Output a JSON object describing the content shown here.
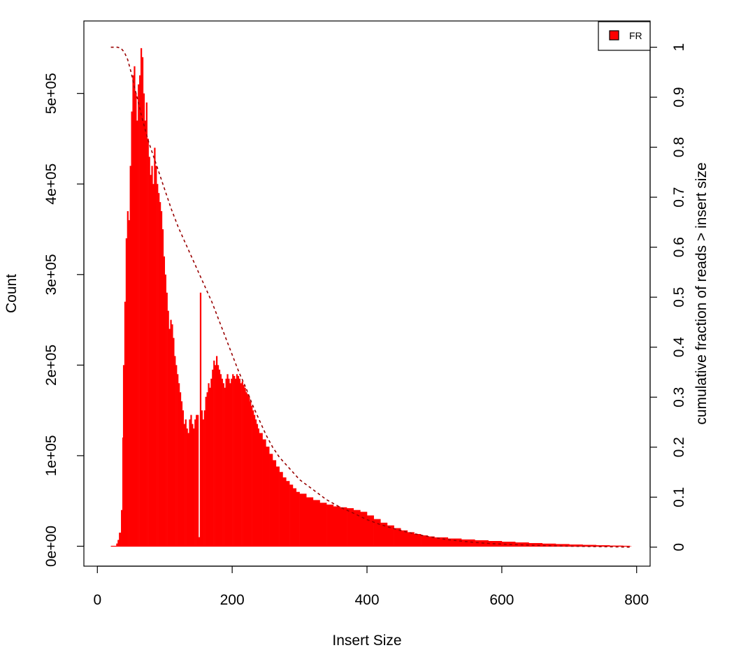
{
  "chart_data": {
    "type": "bar",
    "xlabel": "Insert Size",
    "ylabel": "Count",
    "ylabel_right": "cumulative fraction of reads > insert size",
    "xlim": [
      -20,
      820
    ],
    "ylim": [
      -22000,
      580000
    ],
    "ylim_right": [
      -0.038,
      1.0525
    ],
    "x_ticks": [
      {
        "value": 0,
        "label": "0"
      },
      {
        "value": 200,
        "label": "200"
      },
      {
        "value": 400,
        "label": "400"
      },
      {
        "value": 600,
        "label": "600"
      },
      {
        "value": 800,
        "label": "800"
      }
    ],
    "y_ticks": [
      {
        "value": 0,
        "label": "0e+00"
      },
      {
        "value": 100000,
        "label": "1e+05"
      },
      {
        "value": 200000,
        "label": "2e+05"
      },
      {
        "value": 300000,
        "label": "3e+05"
      },
      {
        "value": 400000,
        "label": "4e+05"
      },
      {
        "value": 500000,
        "label": "5e+05"
      }
    ],
    "y_right_ticks": [
      {
        "value": 0,
        "label": "0"
      },
      {
        "value": 0.1,
        "label": "0.1"
      },
      {
        "value": 0.2,
        "label": "0.2"
      },
      {
        "value": 0.3,
        "label": "0.3"
      },
      {
        "value": 0.4,
        "label": "0.4"
      },
      {
        "value": 0.5,
        "label": "0.5"
      },
      {
        "value": 0.6,
        "label": "0.6"
      },
      {
        "value": 0.7,
        "label": "0.7"
      },
      {
        "value": 0.8,
        "label": "0.8"
      },
      {
        "value": 0.9,
        "label": "0.9"
      },
      {
        "value": 1,
        "label": "1"
      }
    ],
    "legend": {
      "placement": "top-right",
      "entries": [
        {
          "label": "FR",
          "color": "#ff0000"
        }
      ]
    },
    "grid": false,
    "series": [
      {
        "name": "FR",
        "color": "#ff0000",
        "x": [
          20,
          25,
          28,
          30,
          32,
          35,
          37,
          38,
          40,
          42,
          44,
          46,
          48,
          50,
          52,
          54,
          56,
          58,
          60,
          62,
          64,
          66,
          68,
          70,
          72,
          74,
          76,
          78,
          80,
          82,
          84,
          86,
          88,
          90,
          92,
          94,
          96,
          98,
          100,
          102,
          104,
          106,
          108,
          110,
          112,
          114,
          116,
          118,
          120,
          122,
          124,
          126,
          128,
          130,
          132,
          134,
          136,
          138,
          140,
          142,
          144,
          146,
          148,
          150,
          152,
          154,
          156,
          158,
          160,
          162,
          164,
          166,
          168,
          170,
          172,
          174,
          176,
          178,
          180,
          182,
          184,
          186,
          188,
          190,
          192,
          194,
          196,
          198,
          200,
          202,
          204,
          206,
          208,
          210,
          212,
          214,
          216,
          218,
          220,
          222,
          224,
          226,
          228,
          230,
          232,
          234,
          236,
          238,
          240,
          245,
          250,
          255,
          260,
          265,
          270,
          275,
          280,
          285,
          290,
          295,
          300,
          310,
          320,
          330,
          340,
          350,
          360,
          370,
          380,
          390,
          400,
          410,
          420,
          430,
          440,
          450,
          460,
          470,
          480,
          490,
          500,
          520,
          540,
          560,
          580,
          600,
          620,
          640,
          660,
          680,
          700,
          720,
          740,
          760,
          780,
          790
        ],
        "values": [
          0,
          0,
          3000,
          7000,
          15000,
          40000,
          120000,
          200000,
          270000,
          340000,
          370000,
          360000,
          420000,
          480000,
          520000,
          530000,
          500000,
          470000,
          510000,
          520000,
          550000,
          540000,
          500000,
          470000,
          490000,
          450000,
          430000,
          410000,
          420000,
          400000,
          440000,
          420000,
          400000,
          390000,
          380000,
          370000,
          350000,
          320000,
          300000,
          280000,
          260000,
          240000,
          250000,
          245000,
          230000,
          210000,
          200000,
          190000,
          180000,
          170000,
          160000,
          150000,
          135000,
          140000,
          130000,
          125000,
          140000,
          145000,
          135000,
          130000,
          140000,
          145000,
          145000,
          10000,
          280000,
          150000,
          140000,
          150000,
          165000,
          170000,
          180000,
          175000,
          185000,
          195000,
          205000,
          200000,
          210000,
          200000,
          195000,
          190000,
          185000,
          180000,
          175000,
          185000,
          190000,
          185000,
          180000,
          185000,
          190000,
          188000,
          185000,
          190000,
          188000,
          185000,
          180000,
          182000,
          178000,
          175000,
          170000,
          168000,
          165000,
          160000,
          155000,
          150000,
          145000,
          140000,
          135000,
          130000,
          125000,
          118000,
          110000,
          102000,
          95000,
          88000,
          82000,
          76000,
          72000,
          68000,
          64000,
          60000,
          58000,
          54000,
          51000,
          48000,
          46000,
          44000,
          43000,
          42000,
          40000,
          38000,
          34000,
          30000,
          26000,
          23000,
          20000,
          17500,
          15500,
          13500,
          12000,
          10800,
          9800,
          8500,
          7500,
          6600,
          5800,
          5000,
          4200,
          3500,
          2900,
          2400,
          1900,
          1500,
          1100,
          700,
          400,
          200
        ]
      },
      {
        "name": "",
        "axis": "right",
        "color": "#990000",
        "style": "dashed",
        "x": [
          20,
          30,
          35,
          40,
          45,
          50,
          55,
          60,
          65,
          70,
          75,
          80,
          90,
          100,
          110,
          120,
          130,
          140,
          150,
          160,
          170,
          180,
          190,
          200,
          210,
          220,
          230,
          240,
          250,
          260,
          270,
          280,
          290,
          300,
          320,
          340,
          360,
          380,
          400,
          420,
          440,
          460,
          480,
          500,
          520,
          540,
          560,
          580,
          600,
          650,
          700,
          750,
          790
        ],
        "values": [
          1.0,
          1.0,
          0.998,
          0.99,
          0.975,
          0.95,
          0.92,
          0.895,
          0.865,
          0.84,
          0.815,
          0.795,
          0.755,
          0.715,
          0.675,
          0.64,
          0.61,
          0.58,
          0.55,
          0.52,
          0.49,
          0.455,
          0.42,
          0.385,
          0.35,
          0.32,
          0.285,
          0.255,
          0.225,
          0.2,
          0.18,
          0.165,
          0.15,
          0.135,
          0.115,
          0.095,
          0.08,
          0.068,
          0.055,
          0.045,
          0.037,
          0.03,
          0.024,
          0.019,
          0.015,
          0.012,
          0.0095,
          0.0075,
          0.006,
          0.0035,
          0.002,
          0.001,
          0.0
        ]
      }
    ]
  }
}
